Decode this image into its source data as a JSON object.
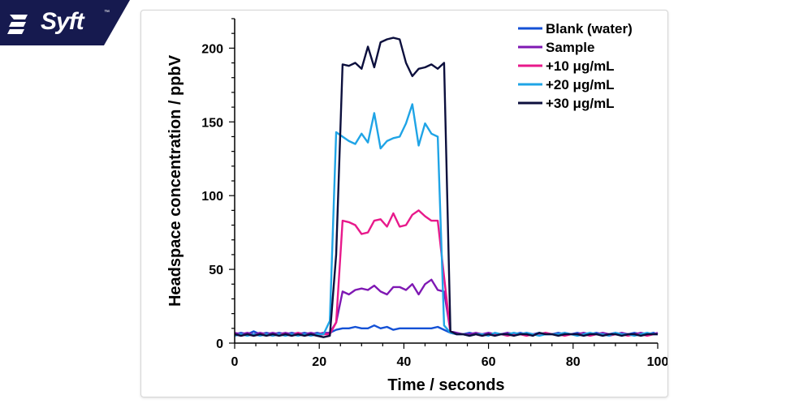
{
  "brand": {
    "name": "Syft",
    "trademark": "™",
    "color": "#161a4f"
  },
  "chart_data": {
    "type": "line",
    "xlabel": "Time / seconds",
    "ylabel": "Headspace concentration / ppbV",
    "xlim": [
      0,
      100
    ],
    "ylim": [
      0,
      220
    ],
    "xticks": [
      0,
      20,
      40,
      60,
      80,
      100
    ],
    "yticks": [
      0,
      50,
      100,
      150,
      200
    ],
    "grid": false,
    "legend_position": "top-right",
    "x": [
      0,
      1.5,
      3,
      4.5,
      6,
      7.5,
      9,
      10.5,
      12,
      13.5,
      15,
      16.5,
      18,
      19.5,
      21,
      22.5,
      24,
      25.5,
      27,
      28.5,
      30,
      31.5,
      33,
      34.5,
      36,
      37.5,
      39,
      40.5,
      42,
      43.5,
      45,
      46.5,
      48,
      49.5,
      51,
      52.5,
      54,
      55.5,
      57,
      58.5,
      60,
      61.5,
      63,
      64.5,
      66,
      67.5,
      69,
      70.5,
      72,
      73.5,
      75,
      76.5,
      78,
      79.5,
      81,
      82.5,
      84,
      85.5,
      87,
      88.5,
      90,
      91.5,
      93,
      94.5,
      96,
      97.5,
      99,
      100
    ],
    "series": [
      {
        "name": "Blank (water)",
        "color": "#1451d6",
        "values": [
          6,
          7,
          6,
          8,
          6,
          7,
          6,
          7,
          6,
          7,
          6,
          7,
          6,
          7,
          6,
          7,
          9,
          10,
          10,
          11,
          10,
          10,
          12,
          10,
          11,
          9,
          10,
          10,
          10,
          10,
          10,
          10,
          11,
          9,
          7,
          6,
          6,
          7,
          6,
          6,
          7,
          6,
          6,
          7,
          6,
          7,
          6,
          6,
          7,
          6,
          6,
          7,
          6,
          6,
          7,
          6,
          6,
          7,
          6,
          6,
          7,
          6,
          6,
          7,
          6,
          6,
          7,
          6
        ]
      },
      {
        "name": "Sample",
        "color": "#7f18b3",
        "values": [
          7,
          6,
          7,
          6,
          7,
          6,
          7,
          6,
          7,
          6,
          7,
          6,
          7,
          6,
          7,
          7,
          14,
          35,
          33,
          36,
          37,
          36,
          39,
          35,
          33,
          38,
          38,
          36,
          40,
          33,
          40,
          43,
          36,
          35,
          8,
          7,
          6,
          6,
          7,
          6,
          7,
          6,
          6,
          7,
          6,
          6,
          7,
          6,
          6,
          7,
          6,
          6,
          7,
          6,
          6,
          7,
          6,
          6,
          7,
          6,
          6,
          7,
          6,
          6,
          7,
          6,
          6,
          7
        ]
      },
      {
        "name": "+10 μg/mL",
        "color": "#e8198b",
        "values": [
          6,
          5,
          6,
          5,
          6,
          6,
          5,
          6,
          6,
          5,
          7,
          5,
          6,
          5,
          6,
          6,
          14,
          83,
          82,
          80,
          74,
          75,
          83,
          84,
          79,
          88,
          79,
          80,
          87,
          90,
          86,
          83,
          83,
          45,
          7,
          6,
          6,
          5,
          6,
          5,
          6,
          6,
          6,
          5,
          6,
          6,
          5,
          6,
          6,
          7,
          6,
          6,
          5,
          6,
          6,
          6,
          5,
          6,
          6,
          5,
          6,
          6,
          5,
          6,
          6,
          5,
          6,
          6
        ]
      },
      {
        "name": "+20 μg/mL",
        "color": "#1fa4e6",
        "values": [
          5,
          6,
          5,
          6,
          5,
          6,
          5,
          6,
          5,
          6,
          5,
          6,
          5,
          6,
          6,
          15,
          143,
          140,
          137,
          135,
          142,
          136,
          156,
          132,
          137,
          139,
          140,
          149,
          162,
          134,
          149,
          142,
          140,
          12,
          7,
          6,
          6,
          5,
          6,
          6,
          5,
          7,
          6,
          6,
          7,
          6,
          7,
          6,
          5,
          6,
          6,
          6,
          7,
          6,
          5,
          6,
          7,
          6,
          6,
          5,
          7,
          6,
          6,
          5,
          6,
          7,
          6,
          6
        ]
      },
      {
        "name": "+30 μg/mL",
        "color": "#0c0f3d",
        "values": [
          6,
          5,
          6,
          5,
          6,
          5,
          6,
          5,
          6,
          5,
          6,
          5,
          6,
          5,
          4,
          5,
          60,
          189,
          188,
          190,
          186,
          201,
          187,
          204,
          206,
          207,
          206,
          190,
          181,
          186,
          187,
          189,
          186,
          190,
          8,
          6,
          6,
          5,
          6,
          5,
          6,
          5,
          6,
          6,
          5,
          6,
          6,
          5,
          7,
          6,
          6,
          5,
          6,
          6,
          6,
          5,
          6,
          6,
          5,
          6,
          6,
          5,
          6,
          6,
          5,
          6,
          6,
          6
        ]
      }
    ]
  }
}
